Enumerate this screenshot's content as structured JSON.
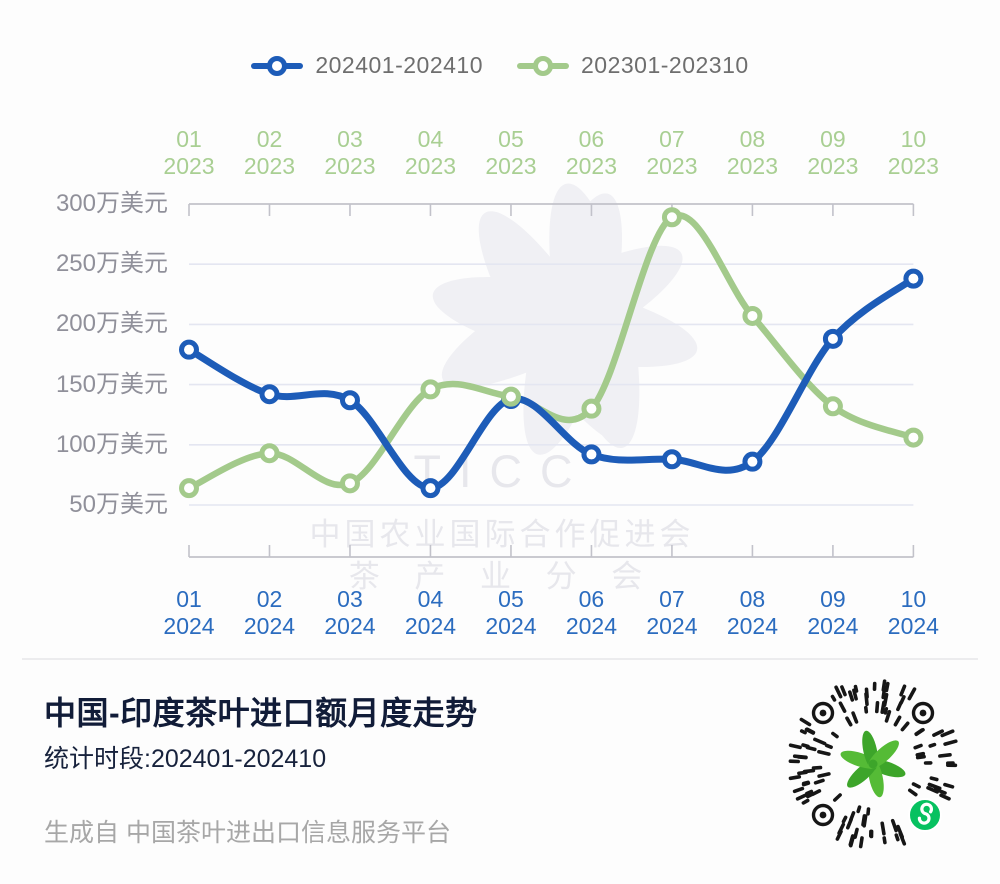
{
  "legend": {
    "items": [
      {
        "label": "202401-202410",
        "color": "#1d5cb8"
      },
      {
        "label": "202301-202310",
        "color": "#a3ca8b"
      }
    ],
    "text_color": "#6e6e6e"
  },
  "chart_data": {
    "type": "line",
    "title": "中国-印度茶叶进口额月度走势",
    "unit": "万美元",
    "ylabel": "万美元",
    "ylim": [
      50,
      300
    ],
    "grid": true,
    "legend_position": "top",
    "y_ticks": [
      300,
      250,
      200,
      150,
      100,
      50
    ],
    "y_tick_suffix": "万美元",
    "top_axis": {
      "year": "2023",
      "months": [
        "01",
        "02",
        "03",
        "04",
        "05",
        "06",
        "07",
        "08",
        "09",
        "10"
      ],
      "color": "#a9cf93"
    },
    "bottom_axis": {
      "year": "2024",
      "months": [
        "01",
        "02",
        "03",
        "04",
        "05",
        "06",
        "07",
        "08",
        "09",
        "10"
      ],
      "color": "#2b6cbf"
    },
    "series": [
      {
        "name": "202401-202410",
        "color": "#1d5cb8",
        "values": [
          179,
          142,
          137,
          64,
          138,
          92,
          88,
          86,
          188,
          238
        ]
      },
      {
        "name": "202301-202310",
        "color": "#a3ca8b",
        "values": [
          64,
          93,
          68,
          146,
          140,
          130,
          289,
          207,
          132,
          106
        ]
      }
    ],
    "grid_color": "#e4e6f1",
    "axis_color": "#c2c2ca"
  },
  "watermark": {
    "letters": "TICC",
    "line1": "中国农业国际合作促进会",
    "line2": "茶 产 业 分 会",
    "color": "#e7e7ec"
  },
  "title_block": {
    "title": "中国-印度茶叶进口额月度走势",
    "subtitle": "统计时段:202401-202410",
    "footer": "生成自 中国茶叶进出口信息服务平台"
  },
  "qr": {
    "kind": "wechat-miniprogram-circular-qr",
    "center_logo": "tea-leaves-logo",
    "badge_color": "#07c160",
    "leaf_green_dark": "#3da52a",
    "leaf_green_light": "#55bb36"
  }
}
